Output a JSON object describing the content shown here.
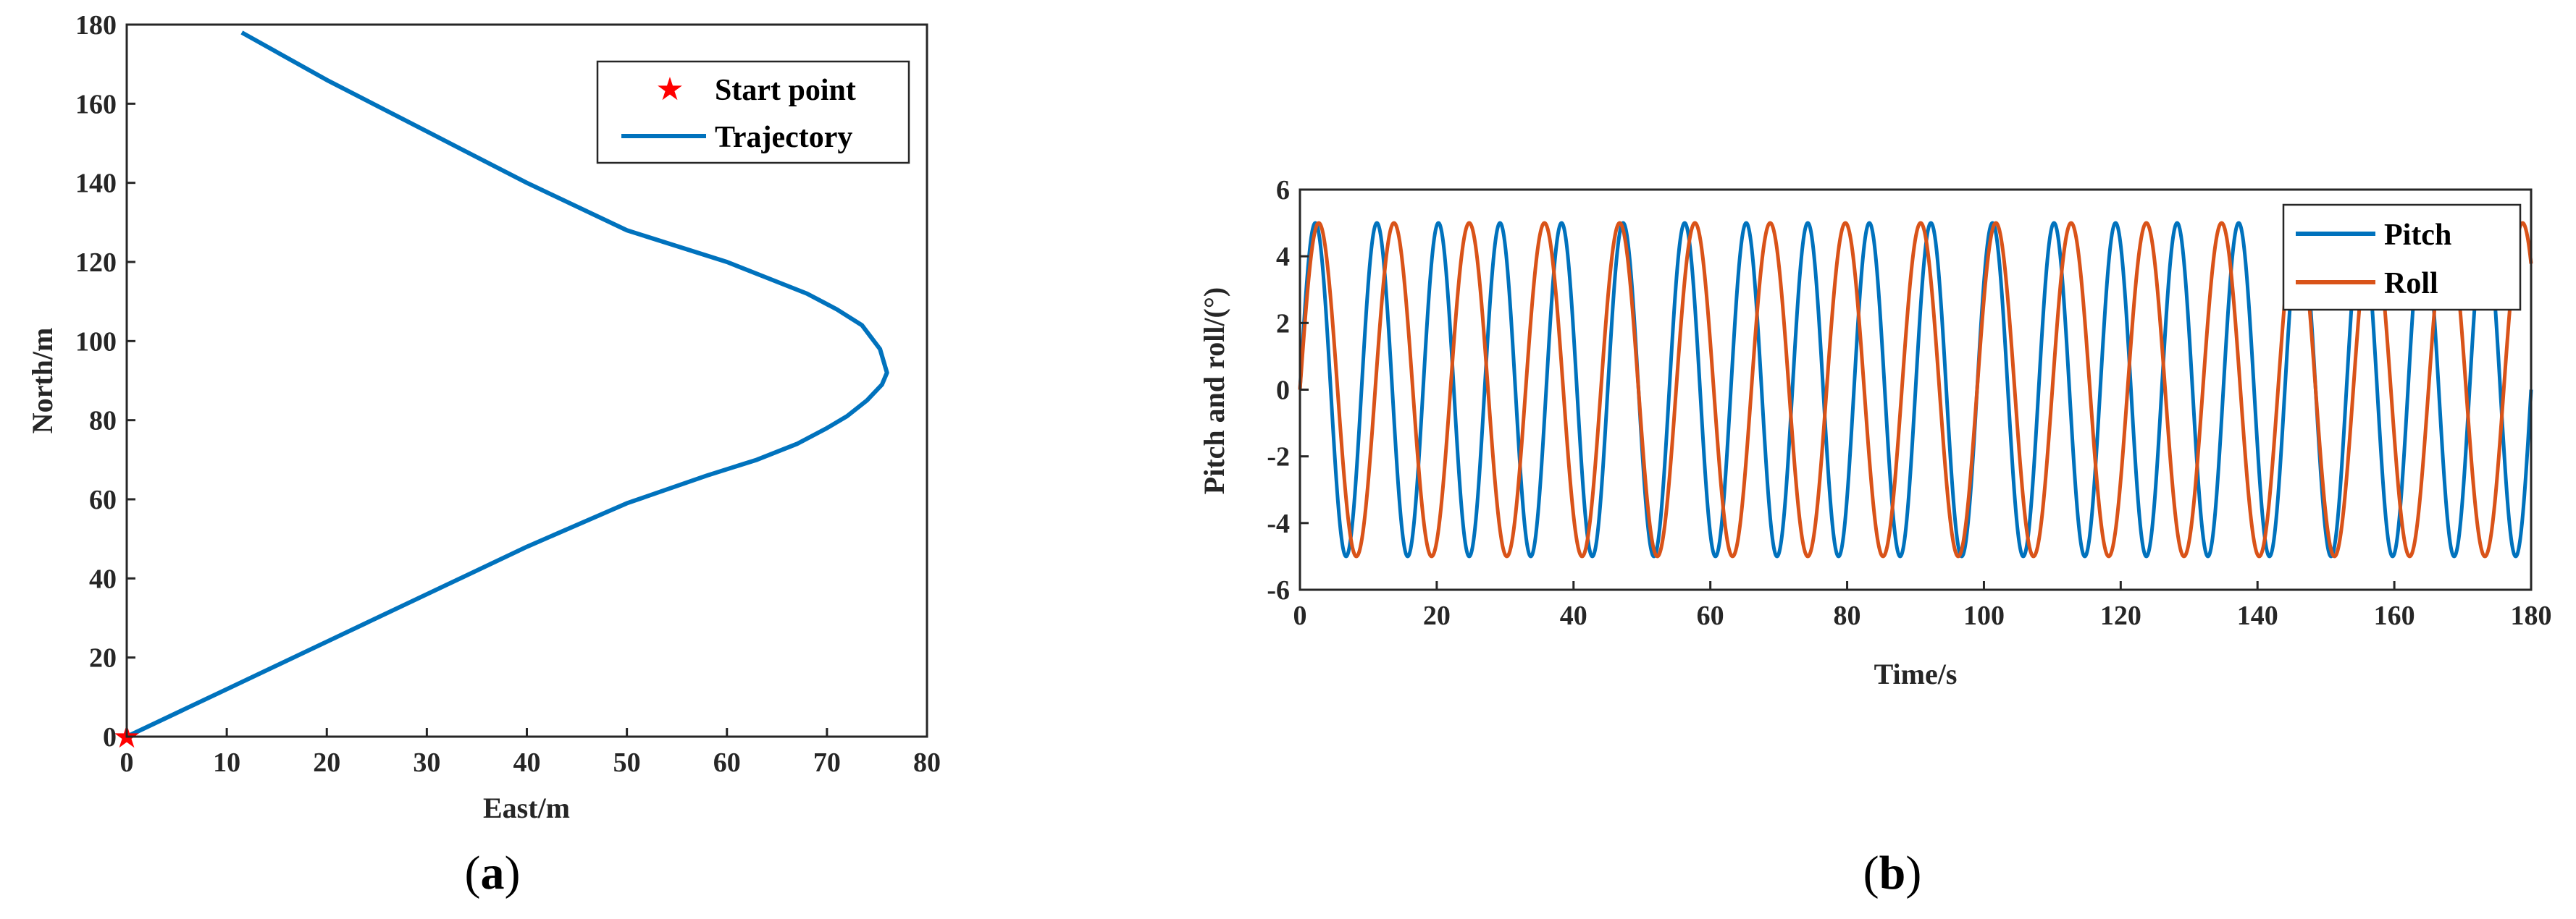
{
  "colors": {
    "trajectory": "#0072BD",
    "pitch": "#0072BD",
    "roll": "#D95319",
    "start_point": "#FF0000",
    "axes": "#262626"
  },
  "captions": [
    {
      "open": "(",
      "letter": "a",
      "close": ")"
    },
    {
      "open": "(",
      "letter": "b",
      "close": ")"
    }
  ],
  "chart_data": [
    {
      "panel": "a",
      "type": "line",
      "title": "",
      "xlabel": "East/m",
      "ylabel": "North/m",
      "xlim": [
        0,
        80
      ],
      "ylim": [
        0,
        180
      ],
      "xticks": [
        0,
        10,
        20,
        30,
        40,
        50,
        60,
        70,
        80
      ],
      "yticks": [
        0,
        20,
        40,
        60,
        80,
        100,
        120,
        140,
        160,
        180
      ],
      "grid": false,
      "legend": {
        "position": "top-right",
        "entries": [
          "Start point",
          "Trajectory"
        ]
      },
      "series": [
        {
          "name": "Trajectory",
          "x": [
            0,
            10,
            20,
            30,
            40,
            50,
            58,
            63,
            67,
            70,
            72,
            74,
            75.5,
            76,
            75.3,
            73.5,
            71,
            68,
            64,
            60,
            50,
            40,
            30,
            20,
            11.5
          ],
          "y": [
            0,
            12,
            24,
            36,
            48,
            59,
            66,
            70,
            74,
            78,
            81,
            85,
            89,
            92,
            98,
            104,
            108,
            112,
            116,
            120,
            128,
            140,
            153,
            166,
            178
          ]
        },
        {
          "name": "Start point",
          "marker": "star",
          "x": [
            0
          ],
          "y": [
            0
          ]
        }
      ]
    },
    {
      "panel": "b",
      "type": "line",
      "title": "",
      "xlabel": "Time/s",
      "ylabel": "Pitch and roll/(°)",
      "xlim": [
        0,
        180
      ],
      "ylim": [
        -6,
        6
      ],
      "xticks": [
        0,
        20,
        40,
        60,
        80,
        100,
        120,
        140,
        160,
        180
      ],
      "yticks": [
        -6,
        -4,
        -2,
        0,
        2,
        4,
        6
      ],
      "grid": false,
      "legend": {
        "position": "top-right",
        "entries": [
          "Pitch",
          "Roll"
        ]
      },
      "series": [
        {
          "name": "Pitch",
          "amplitude": 5,
          "period": 9.0,
          "phase": 0,
          "function": "sin"
        },
        {
          "name": "Roll",
          "amplitude": 5,
          "period": 11.0,
          "phase": 0,
          "function": "sin"
        }
      ]
    }
  ]
}
